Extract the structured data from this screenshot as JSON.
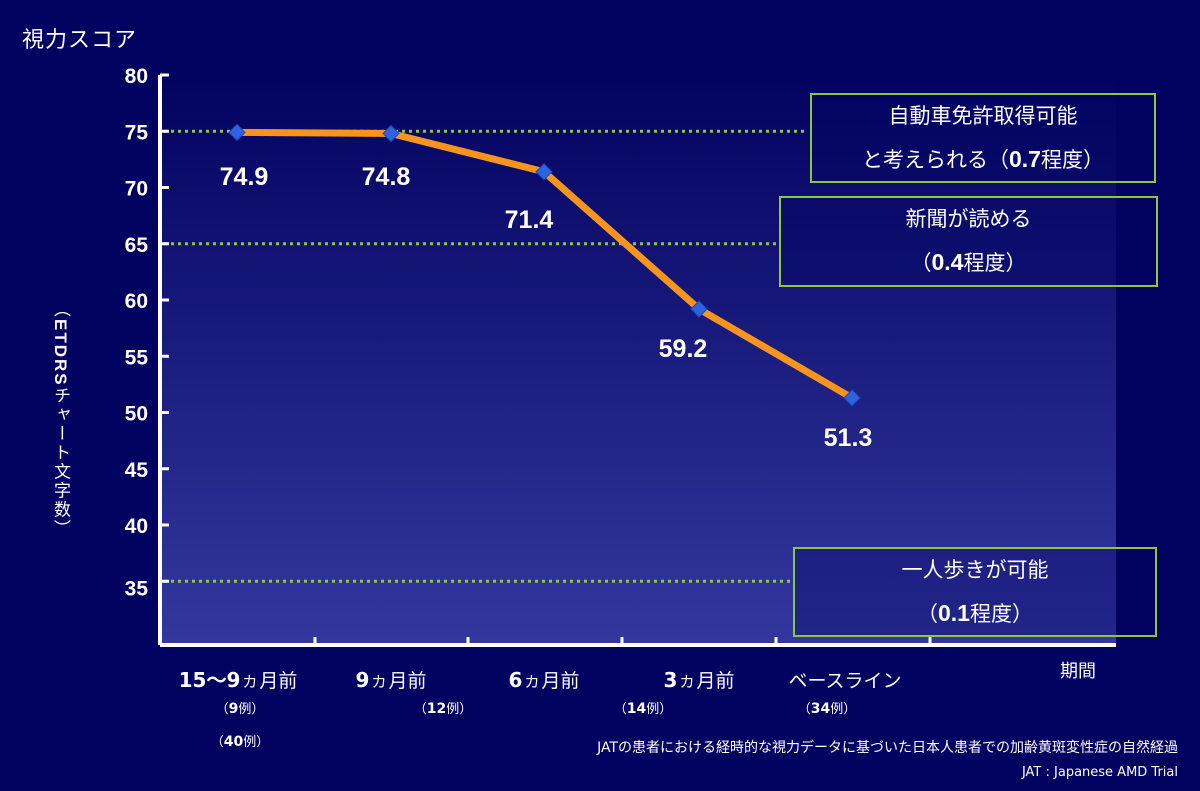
{
  "colors": {
    "background": "#020260",
    "line": "#f7941d",
    "marker": "#2e63e0",
    "threshold": "#8dc63f",
    "text": "#ffffff"
  },
  "y_title": "視力スコア",
  "y_axis_label_num": "ETDRS",
  "y_axis_label_text": "チャート文字数",
  "x_title": "期間",
  "callouts": {
    "driving": {
      "line1": "自動車免許取得可能",
      "line2_pre": "と考えられる（",
      "value": "0.7",
      "line2_post": "程度）"
    },
    "newspaper": {
      "line1": "新聞が読める",
      "line2_pre": "（",
      "value": "0.4",
      "line2_post": "程度）"
    },
    "walking": {
      "line1": "一人歩きが可能",
      "line2_pre": "（",
      "value": "0.1",
      "line2_post": "程度）"
    }
  },
  "footnote": "JATの患者における経時的な視力データに基づいた日本人患者での加齢黄斑変性症の自然経過",
  "footnote2": "JAT : Japanese AMD Trial",
  "chart_data": {
    "type": "line",
    "title": "視力スコア",
    "ylabel": "（ETDRSチャート文字数）",
    "xlabel": "期間",
    "ylim": [
      30,
      80
    ],
    "yticks": [
      "80",
      "75",
      "70",
      "65",
      "60",
      "55",
      "50",
      "45",
      "40",
      "35"
    ],
    "categories": [
      {
        "num": "15〜9",
        "ka": "カ",
        "suffix": "月前",
        "count_num": "9",
        "count_suffix": "例",
        "count2_num": "40",
        "count2_suffix": "例"
      },
      {
        "num": "9",
        "ka": "カ",
        "suffix": "月前",
        "count_num": "12",
        "count_suffix": "例"
      },
      {
        "num": "6",
        "ka": "カ",
        "suffix": "月前",
        "count_num": "14",
        "count_suffix": "例"
      },
      {
        "num": "3",
        "ka": "カ",
        "suffix": "月前",
        "count_num": "",
        "count_suffix": ""
      },
      {
        "num": "",
        "ka": "",
        "suffix": "ベースライン",
        "count_num": "34",
        "count_suffix": "例"
      }
    ],
    "values": [
      74.9,
      74.8,
      71.4,
      59.2,
      51.3
    ],
    "value_labels": [
      "74.9",
      "74.8",
      "71.4",
      "59.2",
      "51.3"
    ],
    "reference_lines": [
      75,
      65,
      35
    ],
    "grid": false,
    "legend": "none"
  }
}
